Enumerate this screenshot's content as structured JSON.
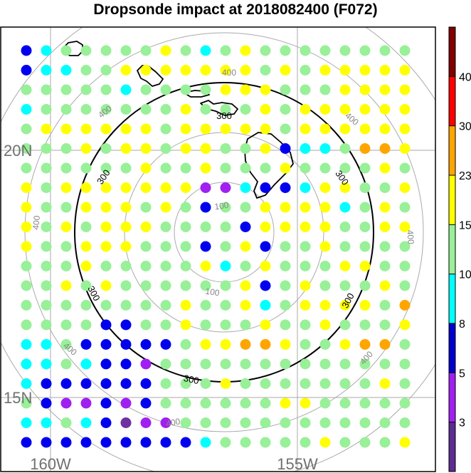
{
  "title": "Dropsonde impact at 2018082400 (F072)",
  "map": {
    "lat_labels": [
      {
        "text": "20N",
        "lat": 20
      },
      {
        "text": "15N",
        "lat": 15
      }
    ],
    "lon_labels": [
      {
        "text": "160W",
        "lon": -160
      },
      {
        "text": "155W",
        "lon": -155
      }
    ],
    "range_ring_labels": {
      "inner": "100",
      "mid": "400",
      "bold": "300"
    },
    "colors": {
      "c0": "#7030a0",
      "c1": "#a020f0",
      "c2": "#0000ee",
      "c3": "#00ffff",
      "c4": "#98f098",
      "c5": "#ffff00",
      "c6": "#ffa500",
      "c7": "#ff0000",
      "c8": "#8b0000"
    }
  },
  "colorbar": {
    "ticks": [
      "3",
      "5",
      "8",
      "10",
      "15",
      "23",
      "30",
      "40"
    ],
    "colors": [
      "#5b2c91",
      "#a020f0",
      "#0000cd",
      "#00ffff",
      "#98f098",
      "#ffff00",
      "#ffa500",
      "#ff0000",
      "#800000"
    ]
  },
  "chart_data": {
    "type": "heatmap",
    "title": "Dropsonde impact at 2018082400 (F072)",
    "value_bins": [
      "<3",
      "3-5",
      "5-8",
      "8-10",
      "10-15",
      "15-23",
      "23-30",
      "30-40",
      ">40"
    ],
    "color_by_bin": [
      "#7030a0",
      "#a020f0",
      "#0000ee",
      "#00ffff",
      "#98f098",
      "#ffff00",
      "#ffa500",
      "#ff0000",
      "#8b0000"
    ],
    "grid_rows": [
      "2 3 4 4 4 4 4 5 4 3 4 5 4 4 4 4 4 4 4 4",
      "2 3 3 4 4 5 5 5 5 5 5 5 4 5 4 5 5 5 5 5",
      "4 4 4 4 4 3 4 4 4 4 5 5 5 4 4 4 5 5 5 5",
      "3 4 4 4 4 4 4 4 5 4 4 4 5 4 5 5 5 5 5 5",
      "4 5 5 5 5 5 5 4 5 5 5 5 5 4 5 5 5 5 5 5",
      "4 4 4 5 4 5 5 4 5 5 4 4 5 2 3 3 4 6 6 5",
      "4 4 4 4 4 4 5 4 4 5 4 4 4 5 4 4 4 4 5 4",
      "5 4 5 5 5 5 5 5 5 1 1 3 2 2 3 5 5 4 4 5",
      "5 4 4 5 5 5 4 5 4 2 4 4 5 5 5 5 3 4 5 4",
      "5 4 5 4 5 5 5 4 4 4 4 2 5 5 5 5 4 4 5 5",
      "5 4 4 5 5 5 4 4 4 2 4 5 2 4 4 5 4 4 4 4",
      "4 4 4 5 4 4 4 4 4 5 3 4 5 4 4 4 5 5 4 4",
      "4 4 5 4 5 4 4 4 4 4 4 5 2 4 5 4 4 4 5 4",
      "4 4 4 4 4 4 4 4 5 4 4 5 3 4 5 5 5 5 4 6",
      "4 4 4 4 2 2 4 4 5 4 4 4 5 4 4 5 4 4 4 5",
      "3 3 4 2 2 2 2 2 4 5 5 6 6 5 4 4 5 6 6 4",
      "3 3 4 3 2 2 1 4 4 4 4 4 4 4 4 4 4 4 4 4",
      "3 2 2 2 2 2 2 4 4 4 5 4 4 4 4 4 4 4 5 4",
      "4 2 1 1 2 1 2 4 4 4 4 4 4 5 5 4 4 4 4 4",
      "3 3 4 3 2 0 1 1 4 4 4 4 4 4 4 4 4 4 4 4",
      "2 2 2 2 2 2 2 2 2 3 4 4 4 4 4 5 4 4 4 5"
    ]
  }
}
